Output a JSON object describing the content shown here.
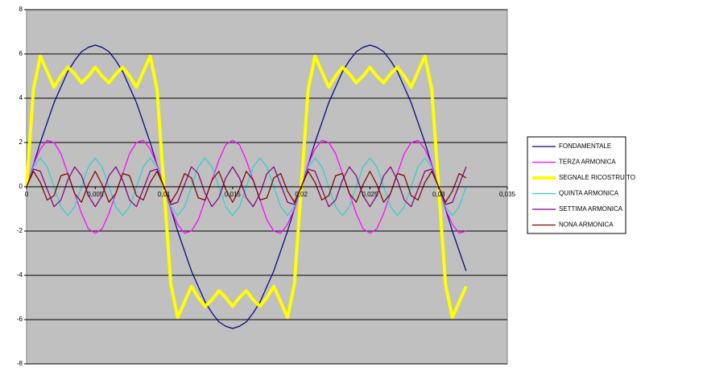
{
  "chart_data": {
    "type": "line",
    "x": [
      0,
      0.0005,
      0.001,
      0.0015,
      0.002,
      0.0025,
      0.003,
      0.0035,
      0.004,
      0.0045,
      0.005,
      0.0055,
      0.006,
      0.0065,
      0.007,
      0.0075,
      0.008,
      0.0085,
      0.009,
      0.0095,
      0.01,
      0.0105,
      0.011,
      0.0115,
      0.012,
      0.0125,
      0.013,
      0.0135,
      0.014,
      0.0145,
      0.015,
      0.0155,
      0.016,
      0.0165,
      0.017,
      0.0175,
      0.018,
      0.0185,
      0.019,
      0.0195,
      0.02,
      0.0205,
      0.021,
      0.0215,
      0.022,
      0.0225,
      0.023,
      0.0235,
      0.024,
      0.0245,
      0.025,
      0.0255,
      0.026,
      0.0265,
      0.027,
      0.0275,
      0.028,
      0.0285,
      0.029,
      0.0295,
      0.03,
      0.0305,
      0.031,
      0.0315,
      0.032
    ],
    "series": [
      {
        "name": "FONDAMENTALE",
        "color": "#000080",
        "width": 1.2,
        "values": [
          0,
          1.0,
          2.0,
          2.9,
          3.8,
          4.5,
          5.2,
          5.7,
          6.1,
          6.3,
          6.4,
          6.3,
          6.1,
          5.7,
          5.2,
          4.5,
          3.8,
          2.9,
          2.0,
          1.0,
          0,
          -1.0,
          -2.0,
          -2.9,
          -3.8,
          -4.5,
          -5.2,
          -5.7,
          -6.1,
          -6.3,
          -6.4,
          -6.3,
          -6.1,
          -5.7,
          -5.2,
          -4.5,
          -3.8,
          -2.9,
          -2.0,
          -1.0,
          0,
          1.0,
          2.0,
          2.9,
          3.8,
          4.5,
          5.2,
          5.7,
          6.1,
          6.3,
          6.4,
          6.3,
          6.1,
          5.7,
          5.2,
          4.5,
          3.8,
          2.9,
          2.0,
          1.0,
          0,
          -1.0,
          -2.0,
          -2.9,
          -3.8
        ]
      },
      {
        "name": "TERZA ARMONICA",
        "color": "#ff00ff",
        "width": 1.2,
        "values": [
          0,
          1.0,
          1.7,
          2.1,
          2.0,
          1.5,
          0.6,
          -0.3,
          -1.2,
          -1.9,
          -2.1,
          -1.9,
          -1.2,
          -0.3,
          0.6,
          1.5,
          2.0,
          2.1,
          1.7,
          1.0,
          0,
          -1.0,
          -1.7,
          -2.1,
          -2.0,
          -1.5,
          -0.6,
          0.3,
          1.2,
          1.9,
          2.1,
          1.9,
          1.2,
          0.3,
          -0.6,
          -1.5,
          -2.0,
          -2.1,
          -1.7,
          -1.0,
          0,
          1.0,
          1.7,
          2.1,
          2.0,
          1.5,
          0.6,
          -0.3,
          -1.2,
          -1.9,
          -2.1,
          -1.9,
          -1.2,
          -0.3,
          0.6,
          1.5,
          2.0,
          2.1,
          1.7,
          1.0,
          0,
          -1.0,
          -1.7,
          -2.1,
          -2.0
        ]
      },
      {
        "name": "SEGNALE RICOSTRUITO",
        "color": "#ffff00",
        "width": 4,
        "values": [
          0,
          4.4,
          5.9,
          5.2,
          4.5,
          5.0,
          5.4,
          5.1,
          4.7,
          5.0,
          5.4,
          5.0,
          4.7,
          5.1,
          5.4,
          5.0,
          4.5,
          5.2,
          5.9,
          4.4,
          0,
          -4.4,
          -5.9,
          -5.2,
          -4.5,
          -5.0,
          -5.4,
          -5.1,
          -4.7,
          -5.0,
          -5.4,
          -5.0,
          -4.7,
          -5.1,
          -5.4,
          -5.0,
          -4.5,
          -5.2,
          -5.9,
          -4.4,
          0,
          4.4,
          5.9,
          5.2,
          4.5,
          5.0,
          5.4,
          5.1,
          4.7,
          5.0,
          5.4,
          5.0,
          4.7,
          5.1,
          5.4,
          5.0,
          4.5,
          5.2,
          5.9,
          4.4,
          0,
          -4.4,
          -5.9,
          -5.2,
          -4.5
        ]
      },
      {
        "name": "QUINTA ARMONICA",
        "color": "#33cccc",
        "width": 1.2,
        "values": [
          0,
          0.9,
          1.3,
          0.9,
          0,
          -0.9,
          -1.3,
          -0.9,
          0,
          0.9,
          1.3,
          0.9,
          0,
          -0.9,
          -1.3,
          -0.9,
          0,
          0.9,
          1.3,
          0.9,
          0,
          -0.9,
          -1.3,
          -0.9,
          0,
          0.9,
          1.3,
          0.9,
          0,
          -0.9,
          -1.3,
          -0.9,
          0,
          0.9,
          1.3,
          0.9,
          0,
          -0.9,
          -1.3,
          -0.9,
          0,
          0.9,
          1.3,
          0.9,
          0,
          -0.9,
          -1.3,
          -0.9,
          0,
          0.9,
          1.3,
          0.9,
          0,
          -0.9,
          -1.3,
          -0.9,
          0,
          0.9,
          1.3,
          0.9,
          0,
          -0.9,
          -1.3,
          -0.9,
          0
        ]
      },
      {
        "name": "SETTIMA ARMONICA",
        "color": "#800080",
        "width": 1.2,
        "values": [
          0,
          0.8,
          0.7,
          -0.1,
          -0.9,
          -0.6,
          0.3,
          0.9,
          0.5,
          -0.4,
          -0.9,
          -0.4,
          0.5,
          0.9,
          0.3,
          -0.6,
          -0.9,
          -0.1,
          0.7,
          0.8,
          0,
          -0.8,
          -0.7,
          0.1,
          0.9,
          0.6,
          -0.3,
          -0.9,
          -0.5,
          0.4,
          0.9,
          0.4,
          -0.5,
          -0.9,
          -0.3,
          0.6,
          0.9,
          0.1,
          -0.7,
          -0.8,
          0,
          0.8,
          0.7,
          -0.1,
          -0.9,
          -0.6,
          0.3,
          0.9,
          0.5,
          -0.4,
          -0.9,
          -0.4,
          0.5,
          0.9,
          0.3,
          -0.6,
          -0.9,
          -0.1,
          0.7,
          0.8,
          0,
          -0.8,
          -0.7,
          0.1,
          0.9
        ]
      },
      {
        "name": "NONA ARMONICA",
        "color": "#800000",
        "width": 1.2,
        "values": [
          0,
          0.7,
          0.2,
          -0.6,
          -0.4,
          0.5,
          0.6,
          -0.3,
          -0.7,
          0.1,
          0.7,
          0.1,
          -0.7,
          -0.3,
          0.6,
          0.5,
          -0.4,
          -0.6,
          0.2,
          0.7,
          0,
          -0.7,
          -0.2,
          0.6,
          0.4,
          -0.5,
          -0.6,
          0.3,
          0.7,
          -0.1,
          -0.7,
          -0.1,
          0.7,
          0.3,
          -0.6,
          -0.5,
          0.4,
          0.6,
          -0.2,
          -0.7,
          0,
          0.7,
          0.2,
          -0.6,
          -0.4,
          0.5,
          0.6,
          -0.3,
          -0.7,
          0.1,
          0.7,
          0.1,
          -0.7,
          -0.3,
          0.6,
          0.5,
          -0.4,
          -0.6,
          0.2,
          0.7,
          0,
          -0.7,
          -0.2,
          0.6,
          0.4
        ]
      }
    ],
    "xlim": [
      0,
      0.035
    ],
    "xticks": [
      0,
      {
        "value": 0.005,
        "label": "0,005"
      },
      {
        "value": 0.01,
        "label": "0,01"
      },
      {
        "value": 0.015,
        "label": "0,015"
      },
      {
        "value": 0.02,
        "label": "0,02"
      },
      {
        "value": 0.025,
        "label": "0,025"
      },
      {
        "value": 0.03,
        "label": "0,03"
      },
      {
        "value": 0.035,
        "label": "0,035"
      }
    ],
    "ylim": [
      -8,
      8
    ],
    "yticks": [
      -8,
      -6,
      -4,
      -2,
      0,
      2,
      4,
      6,
      8
    ],
    "grid": true,
    "plot_background": "#c0c0c0",
    "legend": "right"
  }
}
